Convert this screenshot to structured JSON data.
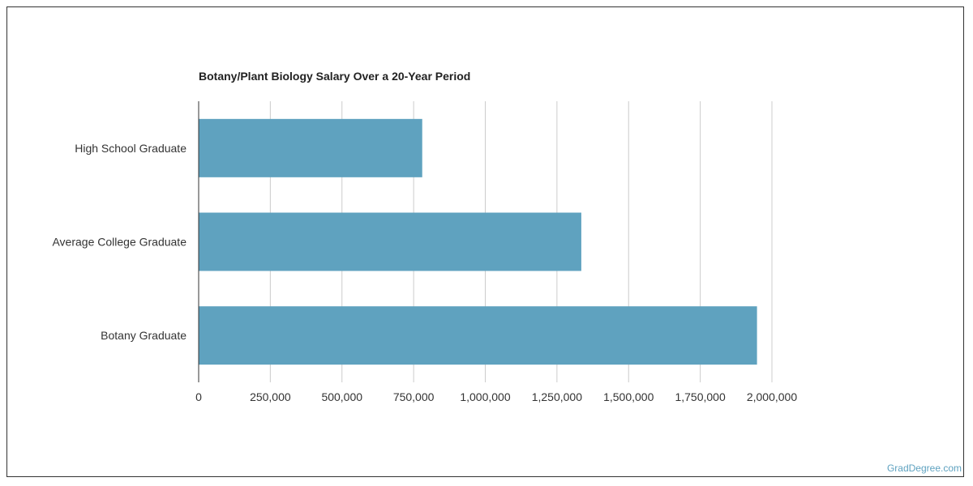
{
  "chart_data": {
    "type": "bar",
    "orientation": "horizontal",
    "title": "Botany/Plant Biology Salary Over a 20-Year Period",
    "categories": [
      "High School Graduate",
      "Average College Graduate",
      "Botany Graduate"
    ],
    "values": [
      780000,
      1335000,
      1948000
    ],
    "xlim": [
      0,
      2000000
    ],
    "xticks": [
      0,
      250000,
      500000,
      750000,
      1000000,
      1250000,
      1500000,
      1750000,
      2000000
    ],
    "xtick_labels": [
      "0",
      "250,000",
      "500,000",
      "750,000",
      "1,000,000",
      "1,250,000",
      "1,500,000",
      "1,750,000",
      "2,000,000"
    ],
    "grid": "vertical",
    "bar_color": "#5fa2bf",
    "grid_color": "#cccccc",
    "axis_color": "#333333",
    "label_color": "#333333"
  },
  "credit": "GradDegree.com"
}
